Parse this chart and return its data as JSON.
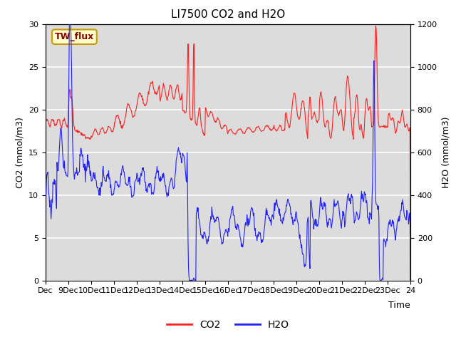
{
  "title": "LI7500 CO2 and H2O",
  "xlabel": "Time",
  "ylabel_left": "CO2 (mmol/m3)",
  "ylabel_right": "H2O (mmol/m3)",
  "ylim_left": [
    0,
    30
  ],
  "ylim_right": [
    0,
    1200
  ],
  "annotation": "TW_flux",
  "co2_color": "#ff2020",
  "h2o_color": "#2020ff",
  "bg_color": "#dcdcdc",
  "legend_co2": "CO2",
  "legend_h2o": "H2O",
  "x_tick_labels": [
    "Dec",
    "9Dec",
    "10Dec",
    "11Dec",
    "12Dec",
    "13Dec",
    "14Dec",
    "15Dec",
    "16Dec",
    "17Dec",
    "18Dec",
    "19Dec",
    "20Dec",
    "21Dec",
    "22Dec",
    "23Dec",
    "24"
  ],
  "title_fontsize": 11,
  "axis_label_fontsize": 9,
  "tick_fontsize": 8
}
